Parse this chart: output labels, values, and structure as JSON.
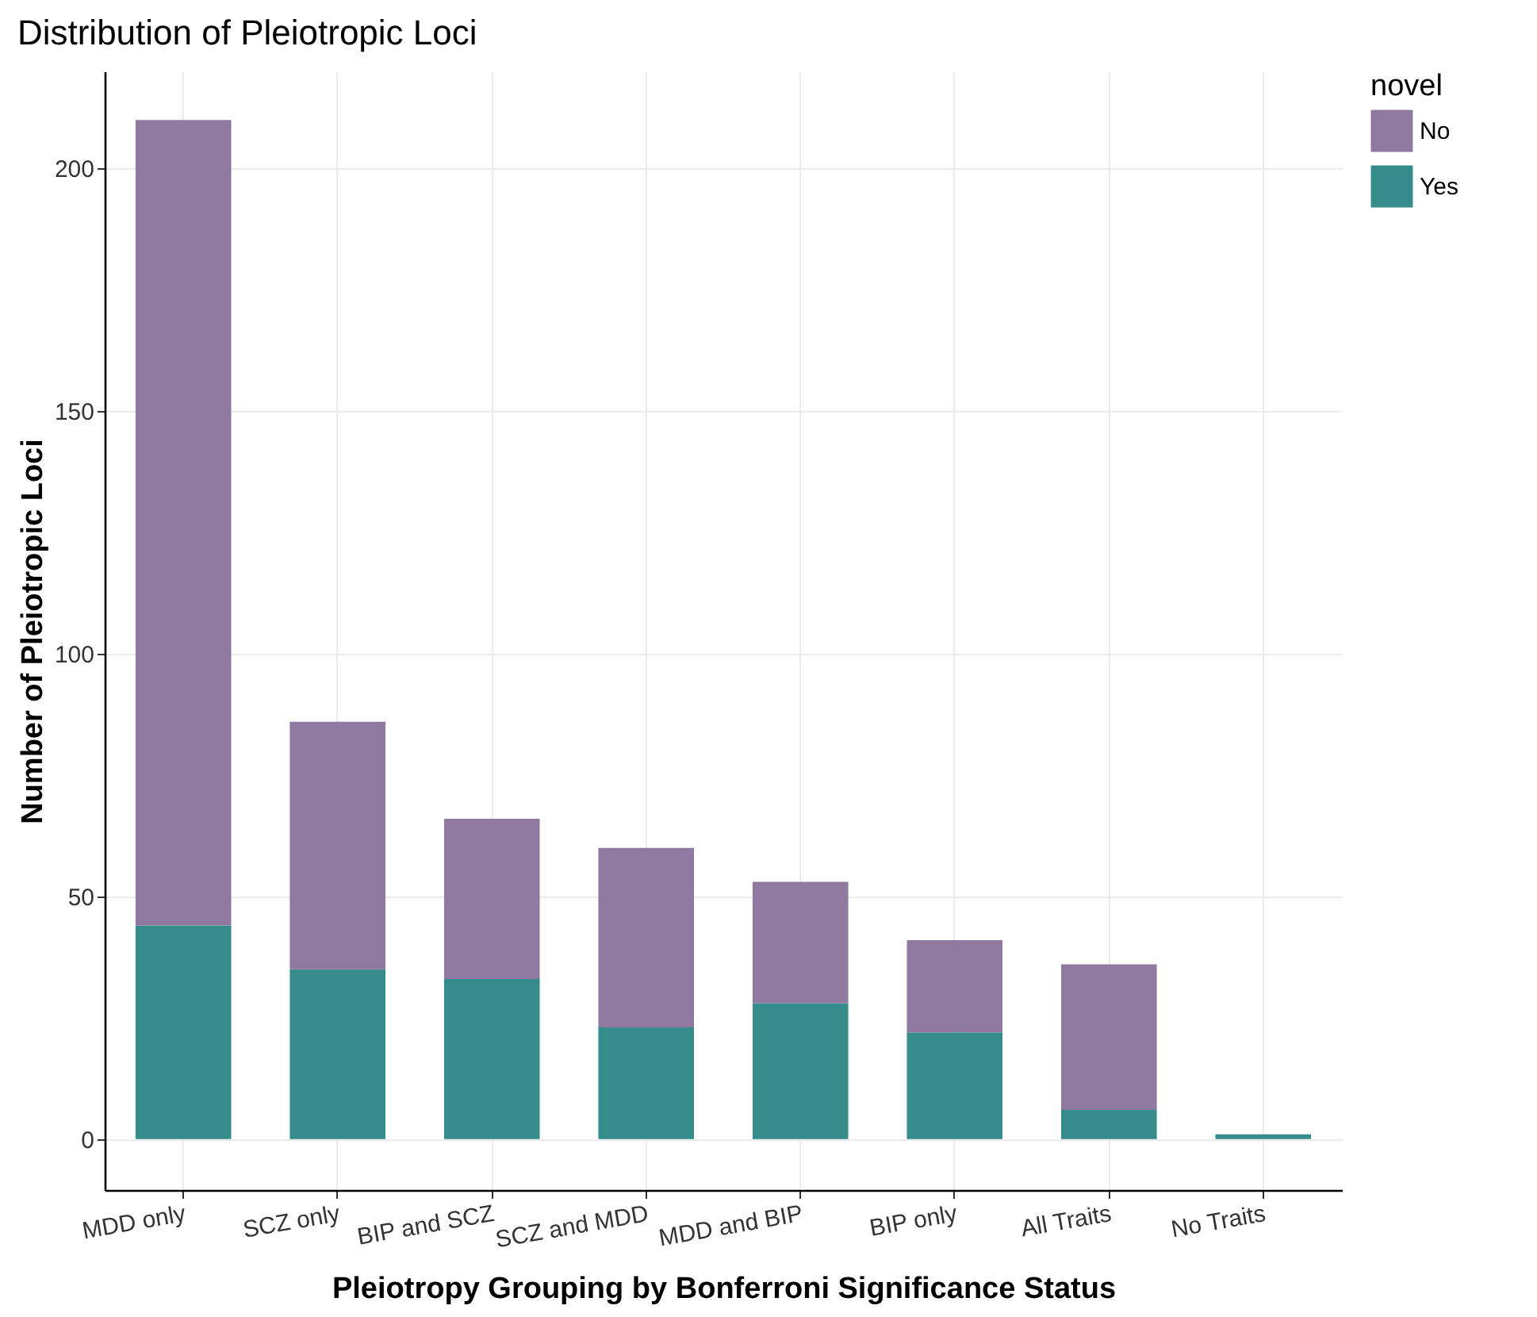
{
  "chart_data": {
    "type": "bar",
    "title": "Distribution of Pleiotropic Loci",
    "xlabel": "Pleiotropy Grouping by Bonferroni Significance Status",
    "ylabel": "Number of Pleiotropic Loci",
    "legend_title": "novel",
    "categories": [
      "MDD only",
      "SCZ only",
      "BIP and SCZ",
      "SCZ and MDD",
      "MDD and BIP",
      "BIP only",
      "All Traits",
      "No Traits"
    ],
    "series": [
      {
        "name": "Yes",
        "color": "#358c8a",
        "values": [
          44,
          35,
          33,
          23,
          28,
          22,
          6,
          1
        ]
      },
      {
        "name": "No",
        "color": "#8f79a1",
        "values": [
          166,
          51,
          33,
          37,
          25,
          19,
          30,
          0
        ]
      }
    ],
    "stacked": true,
    "ylim": [
      -10.5,
      220
    ],
    "yticks": [
      0,
      50,
      100,
      150,
      200
    ],
    "grid": true,
    "legend": "right"
  }
}
